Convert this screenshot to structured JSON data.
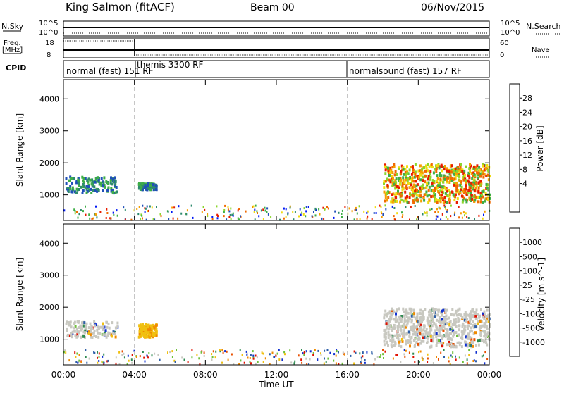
{
  "header": {
    "title": "King Salmon (fitACF)",
    "beam": "Beam 00",
    "date": "06/Nov/2015"
  },
  "panels": {
    "nsky_label": "N.Sky",
    "nsky_ticks": [
      "10^5",
      "10^0"
    ],
    "nsearch_label": "N.Search",
    "nsearch_ticks": [
      "10^5",
      "10^0"
    ],
    "freq_label": "Freq.",
    "freq_unit": "[MHz]",
    "freq_ticks": [
      "18",
      "8"
    ],
    "nave_label": "Nave",
    "nave_ticks": [
      "60",
      "0"
    ],
    "cpid_label": "CPID",
    "modes": [
      "normal (fast) 151 RF",
      "themis 3300 RF",
      "normalsound (fast) 157 RF"
    ]
  },
  "chart_data": [
    {
      "type": "heatmap",
      "name": "power",
      "ylabel": "Slant Range [km]",
      "ylim": [
        200,
        4600
      ],
      "yticks": [
        "1000",
        "2000",
        "3000",
        "4000"
      ],
      "xticks": [
        "00:00",
        "04:00",
        "08:00",
        "12:00",
        "16:00",
        "20:00",
        "00:00"
      ],
      "xlim_hours": [
        0,
        24
      ],
      "mode_change_hours": [
        4,
        16
      ],
      "colorbar_label": "Power [dB]",
      "colorbar_ticks": [
        "28",
        "24",
        "20",
        "16",
        "12",
        "8",
        "4"
      ],
      "colorbar_colors": [
        "#0018f5",
        "#1f4fb8",
        "#2e8a6e",
        "#3eae46",
        "#8cd62b",
        "#f0dc10",
        "#f5a000",
        "#f06a00",
        "#e81c00"
      ],
      "regions": [
        {
          "hours": [
            0.1,
            3.0
          ],
          "range_km": [
            1100,
            1600
          ],
          "level": "medium"
        },
        {
          "hours": [
            4.2,
            5.2
          ],
          "range_km": [
            1200,
            1400
          ],
          "level": "medium"
        },
        {
          "hours": [
            18.0,
            24.0
          ],
          "range_km": [
            800,
            2000
          ],
          "level": "high"
        }
      ]
    },
    {
      "type": "heatmap",
      "name": "velocity",
      "ylabel": "Slant Range [km]",
      "ylim": [
        200,
        4600
      ],
      "yticks": [
        "1000",
        "2000",
        "3000",
        "4000"
      ],
      "xticks": [
        "00:00",
        "04:00",
        "08:00",
        "12:00",
        "16:00",
        "20:00",
        "00:00"
      ],
      "xlim_hours": [
        0,
        24
      ],
      "mode_change_hours": [
        4,
        16
      ],
      "colorbar_label": "Velocity [m s^-1]",
      "colorbar_ticks": [
        "1000",
        "500",
        "100",
        "25",
        "-25",
        "-100",
        "-500",
        "-1000"
      ],
      "colorbar_colors": [
        "#1030d0",
        "#2e5fa8",
        "#2e8a50",
        "#6ec03a",
        "#c8c8c0",
        "#f0c010",
        "#f08a00",
        "#e85000",
        "#e01000"
      ],
      "regions": [
        {
          "hours": [
            0.1,
            3.0
          ],
          "range_km": [
            1100,
            1600
          ],
          "level": "near-zero"
        },
        {
          "hours": [
            4.2,
            5.2
          ],
          "range_km": [
            1100,
            1500
          ],
          "level": "-100"
        },
        {
          "hours": [
            18.0,
            24.0
          ],
          "range_km": [
            800,
            2000
          ],
          "level": "near-zero"
        }
      ]
    }
  ],
  "xlabel": "Time UT"
}
